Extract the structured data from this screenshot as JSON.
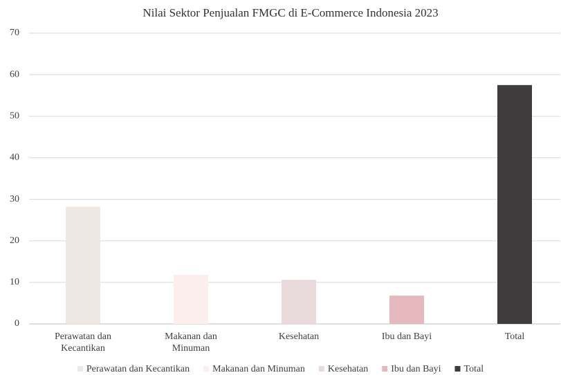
{
  "chart_data": {
    "type": "bar",
    "title": "Nilai Sektor Penjualan FMGC di E-Commerce Indonesia 2023",
    "categories": [
      "Perawatan dan Kecantikan",
      "Makanan dan Minuman",
      "Kesehatan",
      "Ibu dan Bayi",
      "Total"
    ],
    "values": [
      28.2,
      11.8,
      10.6,
      6.8,
      57.5
    ],
    "colors": [
      "#ede8e3",
      "#fbeeec",
      "#e8dadb",
      "#e5b8be",
      "#403b3c"
    ],
    "ylim": [
      0,
      70
    ],
    "yticks": [
      0,
      10,
      20,
      30,
      40,
      50,
      60,
      70
    ],
    "grid": true,
    "legend": "bottom"
  }
}
